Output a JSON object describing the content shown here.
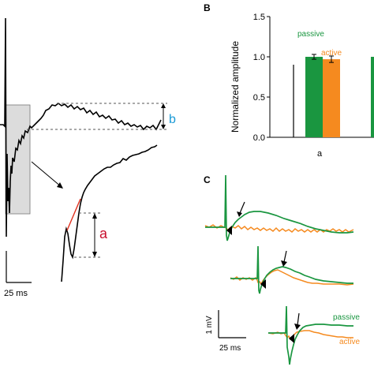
{
  "chart_data": [
    {
      "panel": "A",
      "type": "line",
      "title": "",
      "annotations": {
        "amplitude_a": "a",
        "amplitude_b": "b"
      },
      "scale_bar": {
        "time_label": "25 ms"
      },
      "colors": {
        "trace": "#000000",
        "slope_line": "#e0301e",
        "label_a": "#c8102e",
        "label_b": "#1a9ad6",
        "inset_box": "#d9d9d9"
      }
    },
    {
      "panel": "B",
      "type": "bar",
      "panel_letter": "B",
      "ylabel": "Normalized amplitude",
      "ylim": [
        0,
        1.5
      ],
      "yticks": [
        "0.0",
        "0.5",
        "1.0",
        "1.5"
      ],
      "categories": [
        "a"
      ],
      "series": [
        {
          "name": "passive",
          "color": "#1a9640",
          "values": [
            1.0
          ],
          "errors": [
            0.03
          ]
        },
        {
          "name": "active",
          "color": "#f58a1f",
          "values": [
            0.97
          ],
          "errors": [
            0.04
          ]
        }
      ]
    },
    {
      "panel": "C",
      "type": "line",
      "panel_letter": "C",
      "series": [
        {
          "name": "passive",
          "color": "#1a9640"
        },
        {
          "name": "active",
          "color": "#f58a1f"
        }
      ],
      "scale_bar": {
        "voltage_label": "1 mV",
        "time_label": "25 ms"
      }
    }
  ]
}
